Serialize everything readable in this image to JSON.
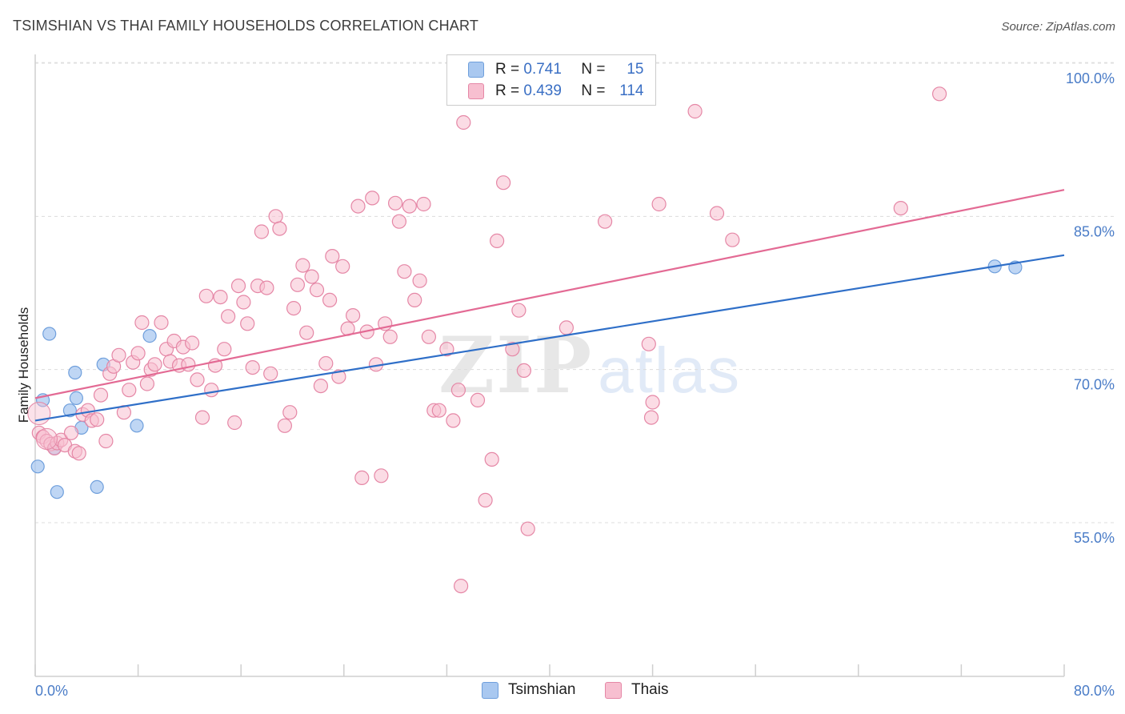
{
  "header": {
    "title": "TSIMSHIAN VS THAI FAMILY HOUSEHOLDS CORRELATION CHART",
    "source": "Source: ZipAtlas.com"
  },
  "watermark": {
    "zip": "ZIP",
    "atlas": "atlas"
  },
  "legend": {
    "rows": [
      {
        "r_label": "R =",
        "r_value": "0.741",
        "n_label": "N =",
        "n_value": "15",
        "color": "#a9c8f0",
        "border": "#6f9fdc"
      },
      {
        "r_label": "R =",
        "r_value": "0.439",
        "n_label": "N =",
        "n_value": "114",
        "color": "#f7bfd0",
        "border": "#e587a6"
      }
    ]
  },
  "chart_data": {
    "type": "scatter",
    "title": "TSIMSHIAN VS THAI FAMILY HOUSEHOLDS CORRELATION CHART",
    "xlabel": "",
    "ylabel": "Family Households",
    "xlim": [
      0,
      80
    ],
    "ylim": [
      43,
      102
    ],
    "x_tick_labels": [
      "0.0%",
      "80.0%"
    ],
    "y_ticks": [
      55,
      70,
      85,
      100
    ],
    "y_tick_labels": [
      "55.0%",
      "70.0%",
      "85.0%",
      "100.0%"
    ],
    "grid": "horizontal dashed",
    "series": [
      {
        "name": "Tsimshian",
        "color": "#a9c8f0",
        "edge": "#6f9fdc",
        "line_color": "#2f6fc8",
        "trend": [
          [
            0,
            65.0
          ],
          [
            80,
            81.2
          ]
        ],
        "points": [
          [
            0.2,
            60.5
          ],
          [
            0.6,
            67.0
          ],
          [
            1.1,
            73.5
          ],
          [
            1.5,
            62.3
          ],
          [
            1.7,
            58.0
          ],
          [
            2.7,
            66.0
          ],
          [
            3.1,
            69.7
          ],
          [
            3.2,
            67.2
          ],
          [
            3.6,
            64.3
          ],
          [
            4.8,
            58.5
          ],
          [
            5.3,
            70.5
          ],
          [
            7.9,
            64.5
          ],
          [
            8.9,
            73.3
          ],
          [
            74.6,
            80.1
          ],
          [
            76.2,
            80.0
          ]
        ]
      },
      {
        "name": "Thais",
        "color": "#f7bfd0",
        "edge": "#e587a6",
        "line_color": "#e36a94",
        "trend": [
          [
            0,
            67.2
          ],
          [
            80,
            87.6
          ]
        ],
        "points": [
          [
            0.3,
            63.8
          ],
          [
            0.6,
            63.4
          ],
          [
            0.9,
            63.0
          ],
          [
            1.2,
            62.7
          ],
          [
            1.5,
            62.3
          ],
          [
            1.7,
            62.8
          ],
          [
            2.0,
            63.1
          ],
          [
            2.3,
            62.6
          ],
          [
            2.8,
            63.8
          ],
          [
            3.1,
            62.0
          ],
          [
            3.4,
            61.8
          ],
          [
            3.7,
            65.6
          ],
          [
            4.1,
            66.0
          ],
          [
            4.4,
            65.0
          ],
          [
            4.8,
            65.1
          ],
          [
            5.1,
            67.5
          ],
          [
            5.5,
            63.0
          ],
          [
            5.8,
            69.6
          ],
          [
            6.1,
            70.3
          ],
          [
            6.5,
            71.4
          ],
          [
            6.9,
            65.8
          ],
          [
            7.3,
            68.0
          ],
          [
            7.6,
            70.7
          ],
          [
            8.0,
            71.6
          ],
          [
            8.3,
            74.6
          ],
          [
            8.7,
            68.6
          ],
          [
            9.0,
            70.0
          ],
          [
            9.3,
            70.5
          ],
          [
            9.8,
            74.6
          ],
          [
            10.2,
            72.0
          ],
          [
            10.5,
            70.8
          ],
          [
            10.8,
            72.8
          ],
          [
            11.2,
            70.4
          ],
          [
            11.5,
            72.2
          ],
          [
            11.9,
            70.5
          ],
          [
            12.2,
            72.6
          ],
          [
            12.6,
            69.0
          ],
          [
            13.0,
            65.3
          ],
          [
            13.3,
            77.2
          ],
          [
            13.7,
            68.0
          ],
          [
            14.0,
            70.4
          ],
          [
            14.4,
            77.1
          ],
          [
            14.7,
            72.0
          ],
          [
            15.0,
            75.2
          ],
          [
            15.5,
            64.8
          ],
          [
            15.8,
            78.2
          ],
          [
            16.2,
            76.6
          ],
          [
            16.5,
            74.5
          ],
          [
            16.9,
            70.2
          ],
          [
            17.3,
            78.2
          ],
          [
            17.6,
            83.5
          ],
          [
            18.0,
            78.0
          ],
          [
            18.3,
            69.6
          ],
          [
            18.7,
            85.0
          ],
          [
            19.0,
            83.8
          ],
          [
            19.4,
            64.5
          ],
          [
            19.8,
            65.8
          ],
          [
            20.1,
            76.0
          ],
          [
            20.4,
            78.3
          ],
          [
            20.8,
            80.2
          ],
          [
            21.1,
            73.6
          ],
          [
            21.5,
            79.1
          ],
          [
            21.9,
            77.8
          ],
          [
            22.2,
            68.4
          ],
          [
            22.6,
            70.6
          ],
          [
            22.9,
            76.8
          ],
          [
            23.1,
            81.1
          ],
          [
            23.6,
            69.3
          ],
          [
            23.9,
            80.1
          ],
          [
            24.3,
            74.0
          ],
          [
            24.7,
            75.3
          ],
          [
            25.1,
            86.0
          ],
          [
            25.4,
            59.4
          ],
          [
            25.8,
            73.7
          ],
          [
            26.2,
            86.8
          ],
          [
            26.5,
            70.5
          ],
          [
            26.9,
            59.6
          ],
          [
            27.2,
            74.5
          ],
          [
            27.6,
            73.2
          ],
          [
            28.0,
            86.3
          ],
          [
            28.3,
            84.5
          ],
          [
            28.7,
            79.6
          ],
          [
            29.1,
            86.0
          ],
          [
            29.5,
            76.8
          ],
          [
            29.9,
            78.7
          ],
          [
            30.2,
            86.2
          ],
          [
            30.6,
            73.2
          ],
          [
            31.0,
            66.0
          ],
          [
            31.4,
            66.0
          ],
          [
            32.0,
            72.0
          ],
          [
            32.5,
            65.0
          ],
          [
            32.9,
            68.0
          ],
          [
            33.3,
            94.2
          ],
          [
            34.4,
            67.0
          ],
          [
            35.0,
            57.2
          ],
          [
            35.5,
            61.2
          ],
          [
            35.9,
            82.6
          ],
          [
            36.4,
            88.3
          ],
          [
            37.1,
            72.0
          ],
          [
            37.6,
            75.8
          ],
          [
            38.0,
            69.9
          ],
          [
            38.3,
            54.4
          ],
          [
            41.3,
            74.1
          ],
          [
            44.3,
            84.5
          ],
          [
            47.7,
            72.5
          ],
          [
            47.9,
            65.3
          ],
          [
            48.0,
            66.8
          ],
          [
            48.5,
            86.2
          ],
          [
            51.3,
            95.3
          ],
          [
            53.0,
            85.3
          ],
          [
            54.2,
            82.7
          ],
          [
            67.3,
            85.8
          ],
          [
            70.3,
            97.0
          ],
          [
            33.1,
            48.8
          ]
        ]
      }
    ]
  }
}
